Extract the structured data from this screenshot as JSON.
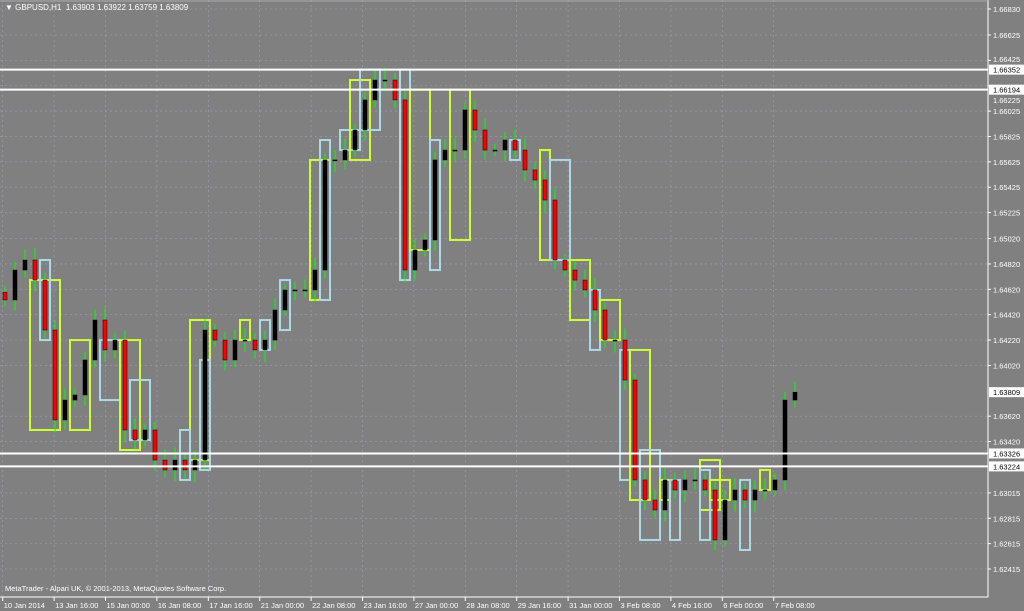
{
  "header": {
    "menu_icon": "triangle-down-icon",
    "symbol": "GBPUSD,H1",
    "quote": "1.63903 1.63922 1.63759 1.63809"
  },
  "footer": {
    "copyright": "MetaTrader - Alpari UK, © 2001-2013, MetaQuotes Software Corp."
  },
  "colors": {
    "background": "#808080",
    "grid": "#9aa3b5",
    "wick": "#00ff00",
    "bull_body": "#000000",
    "bear_body": "#ff0000",
    "box_green": "#ccff33",
    "box_blue": "#add8e6",
    "level_line": "#ffffff"
  },
  "chart_data": {
    "type": "candlestick",
    "symbol": "GBPUSD",
    "timeframe": "H1",
    "ylim": [
      1.62415,
      1.6683
    ],
    "y_ticks": [
      "1.66830",
      "1.66625",
      "1.66425",
      "1.66225",
      "1.66025",
      "1.65825",
      "1.65625",
      "1.65425",
      "1.65225",
      "1.65020",
      "1.64820",
      "1.64620",
      "1.64420",
      "1.64220",
      "1.64020",
      "1.63620",
      "1.63420",
      "1.63015",
      "1.62815",
      "1.62615",
      "1.62415"
    ],
    "x_ticks": [
      "10 Jan 2014",
      "13 Jan 16:00",
      "15 Jan 00:00",
      "16 Jan 08:00",
      "17 Jan 16:00",
      "21 Jan 00:00",
      "22 Jan 08:00",
      "23 Jan 16:00",
      "27 Jan 00:00",
      "28 Jan 08:00",
      "29 Jan 16:00",
      "31 Jan 00:00",
      "3 Feb 08:00",
      "4 Feb 16:00",
      "6 Feb 00:00",
      "7 Feb 08:00"
    ],
    "current_price": "1.63809",
    "levels": [
      "1.66352",
      "1.66194",
      "1.63326",
      "1.63224"
    ],
    "closes": [
      1.64536,
      1.64772,
      1.64851,
      1.64693,
      1.64299,
      1.6359,
      1.63747,
      1.63787,
      1.64063,
      1.64378,
      1.64142,
      1.6422,
      1.63511,
      1.63432,
      1.63511,
      1.63274,
      1.63196,
      1.63274,
      1.63196,
      1.63274,
      1.64299,
      1.6422,
      1.64063,
      1.6422,
      1.6422,
      1.64142,
      1.6422,
      1.64457,
      1.64615,
      1.64615,
      1.64615,
      1.64772,
      1.6564,
      1.6564,
      1.65718,
      1.65876,
      1.66113,
      1.6627,
      1.6627,
      1.66113,
      1.64772,
      1.6493,
      1.65009,
      1.6564,
      1.65718,
      1.65718,
      1.66034,
      1.65876,
      1.65718,
      1.65718,
      1.65797,
      1.65718,
      1.65561,
      1.65482,
      1.65324,
      1.64851,
      1.64772,
      1.64693,
      1.64615,
      1.64457,
      1.6422,
      1.6422,
      1.63905,
      1.63117,
      1.62959,
      1.6288,
      1.63117,
      1.63038,
      1.63117,
      1.63117,
      1.63038,
      1.62644,
      1.62959,
      1.63038,
      1.62959,
      1.63038,
      1.63038,
      1.63117,
      1.63747,
      1.63809
    ],
    "boxes": [
      {
        "c": "green",
        "from": 3,
        "to": 5,
        "hi": 1.64693,
        "lo": 1.63511
      },
      {
        "c": "blue",
        "from": 4,
        "to": 4,
        "hi": 1.64851,
        "lo": 1.6422
      },
      {
        "c": "green",
        "from": 7,
        "to": 8,
        "hi": 1.6422,
        "lo": 1.63511
      },
      {
        "c": "blue",
        "from": 10,
        "to": 11,
        "hi": 1.6422,
        "lo": 1.63747
      },
      {
        "c": "green",
        "from": 12,
        "to": 13,
        "hi": 1.6422,
        "lo": 1.63353
      },
      {
        "c": "blue",
        "from": 13,
        "to": 14,
        "hi": 1.63905,
        "lo": 1.63432
      },
      {
        "c": "green",
        "from": 19,
        "to": 20,
        "hi": 1.64378,
        "lo": 1.63274
      },
      {
        "c": "blue",
        "from": 18,
        "to": 18,
        "hi": 1.63511,
        "lo": 1.63117
      },
      {
        "c": "blue",
        "from": 20,
        "to": 20,
        "hi": 1.64063,
        "lo": 1.63196
      },
      {
        "c": "green",
        "from": 24,
        "to": 24,
        "hi": 1.64378,
        "lo": 1.6422
      },
      {
        "c": "blue",
        "from": 26,
        "to": 26,
        "hi": 1.64378,
        "lo": 1.64142
      },
      {
        "c": "blue",
        "from": 28,
        "to": 28,
        "hi": 1.64693,
        "lo": 1.64299
      },
      {
        "c": "green",
        "from": 31,
        "to": 32,
        "hi": 1.6564,
        "lo": 1.64536
      },
      {
        "c": "blue",
        "from": 32,
        "to": 32,
        "hi": 1.65797,
        "lo": 1.64536
      },
      {
        "c": "blue",
        "from": 34,
        "to": 35,
        "hi": 1.65876,
        "lo": 1.65718
      },
      {
        "c": "green",
        "from": 35,
        "to": 36,
        "hi": 1.6627,
        "lo": 1.6564
      },
      {
        "c": "blue",
        "from": 36,
        "to": 37,
        "hi": 1.66352,
        "lo": 1.65876
      },
      {
        "c": "blue",
        "from": 40,
        "to": 40,
        "hi": 1.66352,
        "lo": 1.64693
      },
      {
        "c": "green",
        "from": 41,
        "to": 42,
        "hi": 1.66194,
        "lo": 1.6493
      },
      {
        "c": "blue",
        "from": 43,
        "to": 43,
        "hi": 1.65797,
        "lo": 1.64772
      },
      {
        "c": "green",
        "from": 45,
        "to": 46,
        "hi": 1.66194,
        "lo": 1.65009
      },
      {
        "c": "blue",
        "from": 51,
        "to": 51,
        "hi": 1.65797,
        "lo": 1.6564
      },
      {
        "c": "green",
        "from": 54,
        "to": 54,
        "hi": 1.65718,
        "lo": 1.64851
      },
      {
        "c": "blue",
        "from": 55,
        "to": 56,
        "hi": 1.6564,
        "lo": 1.64851
      },
      {
        "c": "green",
        "from": 57,
        "to": 58,
        "hi": 1.64851,
        "lo": 1.64378
      },
      {
        "c": "blue",
        "from": 59,
        "to": 59,
        "hi": 1.64615,
        "lo": 1.64142
      },
      {
        "c": "green",
        "from": 60,
        "to": 61,
        "hi": 1.64536,
        "lo": 1.6422
      },
      {
        "c": "blue",
        "from": 62,
        "to": 62,
        "hi": 1.64142,
        "lo": 1.63117
      },
      {
        "c": "green",
        "from": 63,
        "to": 64,
        "hi": 1.64142,
        "lo": 1.62959
      },
      {
        "c": "blue",
        "from": 64,
        "to": 65,
        "hi": 1.63353,
        "lo": 1.62644
      },
      {
        "c": "green",
        "from": 66,
        "to": 66,
        "hi": 1.63117,
        "lo": 1.62959
      },
      {
        "c": "blue",
        "from": 67,
        "to": 67,
        "hi": 1.63117,
        "lo": 1.62644
      },
      {
        "c": "green",
        "from": 70,
        "to": 71,
        "hi": 1.63274,
        "lo": 1.6288
      },
      {
        "c": "blue",
        "from": 70,
        "to": 70,
        "hi": 1.63196,
        "lo": 1.62644
      },
      {
        "c": "green",
        "from": 71,
        "to": 72,
        "hi": 1.63117,
        "lo": 1.62959
      },
      {
        "c": "blue",
        "from": 74,
        "to": 74,
        "hi": 1.63117,
        "lo": 1.62565
      },
      {
        "c": "green",
        "from": 76,
        "to": 76,
        "hi": 1.63196,
        "lo": 1.63038
      }
    ]
  }
}
